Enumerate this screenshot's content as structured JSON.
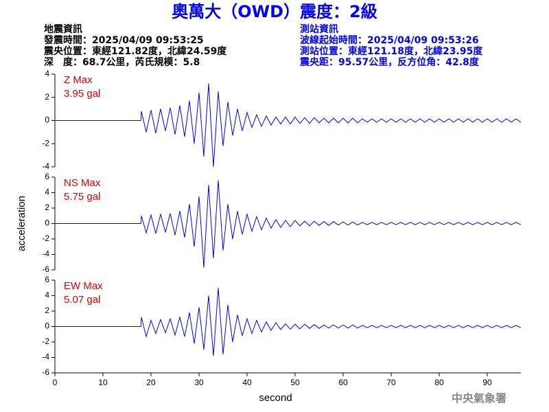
{
  "header": {
    "title": "奧萬大（OWD）震度：2級",
    "left": [
      "地震資訊",
      "發震時間：2025/04/09 09:53:25",
      "震央位置：東經121.82度，北緯24.59度",
      "深　度：68.7公里，芮氏規模：5.8"
    ],
    "right": [
      "測站資訊",
      "波線起始時間：2025/04/09 09:53:26",
      "測站位置：東經121.18度，北緯23.95度",
      "震央距：95.57公里，反方位角：42.8度"
    ]
  },
  "footer": "中央氣象署",
  "chart_data": [
    {
      "type": "line",
      "label": "Z Max",
      "max_label": "3.95 gal",
      "xlim": [
        0,
        97
      ],
      "ylim": [
        -4,
        4
      ],
      "yticks": [
        -4,
        -2,
        0,
        2,
        4
      ],
      "x": [
        0,
        17.9,
        18,
        19,
        20,
        21,
        22,
        23,
        24,
        25,
        26,
        27,
        28,
        29,
        30,
        31,
        32,
        33,
        34,
        35,
        36,
        37,
        38,
        39,
        40,
        41,
        42,
        43,
        44,
        45,
        46,
        47,
        48,
        49,
        50,
        51,
        52,
        53,
        54,
        55,
        56,
        57,
        58,
        59,
        60,
        61,
        62,
        63,
        64,
        65,
        66,
        67,
        68,
        69,
        70,
        71,
        72,
        73,
        74,
        75,
        76,
        77,
        78,
        79,
        80,
        81,
        82,
        83,
        84,
        85,
        86,
        87,
        88,
        89,
        90,
        91,
        92,
        93,
        94,
        95,
        96,
        97
      ],
      "series": [
        {
          "color": "#0000ff",
          "values": [
            0,
            0,
            0.8,
            -1.0,
            0.9,
            -1.1,
            1.0,
            -0.9,
            1.1,
            -1.2,
            1.3,
            -1.4,
            1.7,
            -2.0,
            2.4,
            -3.1,
            3.2,
            -4.0,
            2.5,
            -2.2,
            1.6,
            -1.3,
            1.0,
            -0.9,
            0.7,
            -0.6,
            0.5,
            -0.5,
            0.4,
            -0.4,
            0.3,
            -0.3,
            0.3,
            -0.3,
            0.3,
            -0.25,
            0.25,
            -0.25,
            0.25,
            -0.2,
            0.2,
            -0.2,
            0.2,
            -0.2,
            0.2,
            -0.2,
            0.2,
            -0.2,
            0.15,
            -0.15,
            0.15,
            -0.15,
            0.15,
            -0.15,
            0.15,
            -0.15,
            0.15,
            -0.15,
            0.15,
            -0.15,
            0.15,
            -0.15,
            0.15,
            -0.15,
            0.15,
            -0.15,
            0.15,
            -0.15,
            0.15,
            -0.15,
            0.15,
            -0.15,
            0.15,
            -0.15,
            0.15,
            -0.15,
            0.15,
            -0.15,
            0.15,
            -0.15,
            0.15,
            -0.15
          ]
        }
      ]
    },
    {
      "type": "line",
      "label": "NS Max",
      "max_label": "5.75 gal",
      "ylabel": "acceleration",
      "xlim": [
        0,
        97
      ],
      "ylim": [
        -6,
        6
      ],
      "yticks": [
        -6,
        -4,
        -2,
        0,
        2,
        4,
        6
      ],
      "x": [
        0,
        17.9,
        18,
        19,
        20,
        21,
        22,
        23,
        24,
        25,
        26,
        27,
        28,
        29,
        30,
        31,
        32,
        33,
        34,
        35,
        36,
        37,
        38,
        39,
        40,
        41,
        42,
        43,
        44,
        45,
        46,
        47,
        48,
        49,
        50,
        51,
        52,
        53,
        54,
        55,
        56,
        57,
        58,
        59,
        60,
        61,
        62,
        63,
        64,
        65,
        66,
        67,
        68,
        69,
        70,
        71,
        72,
        73,
        74,
        75,
        76,
        77,
        78,
        79,
        80,
        81,
        82,
        83,
        84,
        85,
        86,
        87,
        88,
        89,
        90,
        91,
        92,
        93,
        94,
        95,
        96,
        97
      ],
      "series": [
        {
          "color": "#0000ff",
          "values": [
            0,
            0,
            1.0,
            -1.2,
            1.1,
            -1.3,
            1.2,
            -1.1,
            1.3,
            -1.5,
            1.6,
            -1.8,
            2.5,
            -3.0,
            3.5,
            -5.7,
            5.0,
            -4.5,
            5.6,
            -3.5,
            2.5,
            -2.0,
            1.6,
            -1.4,
            1.2,
            -1.0,
            0.9,
            -0.8,
            0.7,
            -0.6,
            0.5,
            -0.5,
            0.4,
            -0.4,
            0.4,
            -0.3,
            0.3,
            -0.3,
            0.3,
            -0.25,
            0.25,
            -0.25,
            0.25,
            -0.2,
            0.2,
            -0.2,
            0.2,
            -0.2,
            0.15,
            -0.15,
            0.15,
            -0.15,
            0.15,
            -0.15,
            0.15,
            -0.15,
            0.15,
            -0.15,
            0.15,
            -0.15,
            0.15,
            -0.15,
            0.15,
            -0.15,
            0.15,
            -0.15,
            0.15,
            -0.15,
            0.15,
            -0.15,
            0.15,
            -0.15,
            0.15,
            -0.15,
            0.15,
            -0.15,
            0.15,
            -0.15,
            0.15,
            -0.15,
            0.15,
            -0.15
          ]
        }
      ]
    },
    {
      "type": "line",
      "label": "EW Max",
      "max_label": "5.07 gal",
      "xlabel": "second",
      "xlim": [
        0,
        97
      ],
      "ylim": [
        -6,
        6
      ],
      "yticks": [
        -6,
        -4,
        -2,
        0,
        2,
        4,
        6
      ],
      "xticks": [
        0,
        10,
        20,
        30,
        40,
        50,
        60,
        70,
        80,
        90
      ],
      "x": [
        0,
        17.9,
        18,
        19,
        20,
        21,
        22,
        23,
        24,
        25,
        26,
        27,
        28,
        29,
        30,
        31,
        32,
        33,
        34,
        35,
        36,
        37,
        38,
        39,
        40,
        41,
        42,
        43,
        44,
        45,
        46,
        47,
        48,
        49,
        50,
        51,
        52,
        53,
        54,
        55,
        56,
        57,
        58,
        59,
        60,
        61,
        62,
        63,
        64,
        65,
        66,
        67,
        68,
        69,
        70,
        71,
        72,
        73,
        74,
        75,
        76,
        77,
        78,
        79,
        80,
        81,
        82,
        83,
        84,
        85,
        86,
        87,
        88,
        89,
        90,
        91,
        92,
        93,
        94,
        95,
        96,
        97
      ],
      "series": [
        {
          "color": "#0000ff",
          "values": [
            0,
            0,
            1.2,
            -1.3,
            0.8,
            -0.9,
            0.9,
            -0.8,
            1.0,
            -1.1,
            1.2,
            -1.3,
            1.8,
            -2.2,
            2.5,
            -3.0,
            4.0,
            -3.8,
            5.0,
            -3.6,
            2.8,
            -2.0,
            1.5,
            -1.2,
            1.0,
            -0.9,
            0.8,
            -0.7,
            0.6,
            -0.5,
            0.5,
            -0.4,
            0.35,
            -0.35,
            0.3,
            -0.3,
            0.3,
            -0.25,
            0.25,
            -0.25,
            0.2,
            -0.2,
            0.2,
            -0.2,
            0.2,
            -0.2,
            0.2,
            -0.2,
            0.15,
            -0.15,
            0.15,
            -0.15,
            0.15,
            -0.15,
            0.15,
            -0.15,
            0.15,
            -0.15,
            0.15,
            -0.15,
            0.15,
            -0.15,
            0.15,
            -0.15,
            0.15,
            -0.15,
            0.15,
            -0.15,
            0.15,
            -0.15,
            0.15,
            -0.15,
            0.15,
            -0.15,
            0.15,
            -0.15,
            0.15,
            -0.15,
            0.15,
            -0.15,
            0.15,
            -0.15
          ]
        }
      ]
    }
  ]
}
